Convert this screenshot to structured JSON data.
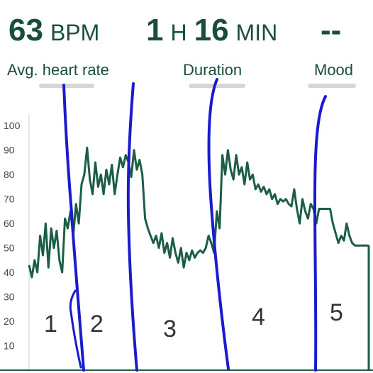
{
  "header": {
    "heart_rate": {
      "value": "63",
      "unit": "BPM",
      "label": "Avg. heart rate"
    },
    "duration": {
      "hours": "1",
      "hours_unit": "H",
      "minutes": "16",
      "minutes_unit": "MIN",
      "label": "Duration"
    },
    "mood": {
      "value": "--",
      "label": "Mood"
    }
  },
  "colors": {
    "line": "#1b5e45",
    "annotation": "#1a1acf",
    "text": "#1b4d3e"
  },
  "chart_data": {
    "type": "line",
    "title": "",
    "xlabel": "",
    "ylabel": "",
    "ylim": [
      0,
      105
    ],
    "y_ticks": [
      "10",
      "20",
      "30",
      "40",
      "50",
      "60",
      "70",
      "80",
      "90",
      "100"
    ],
    "series": [
      {
        "values": [
          43,
          38,
          45,
          40,
          55,
          47,
          60,
          42,
          58,
          50,
          57,
          45,
          40,
          62,
          58,
          65,
          55,
          68,
          60,
          76,
          80,
          91,
          78,
          72,
          85,
          75,
          80,
          72,
          82,
          76,
          84,
          72,
          80,
          87,
          83,
          88,
          85,
          79,
          90,
          82,
          86,
          80,
          62,
          58,
          55,
          52,
          55,
          50,
          56,
          48,
          52,
          46,
          54,
          48,
          44,
          50,
          42,
          48,
          45,
          49,
          46,
          48,
          49,
          48,
          50,
          55,
          52,
          48,
          65,
          58,
          88,
          80,
          90,
          82,
          78,
          88,
          80,
          83,
          76,
          85,
          78,
          80,
          74,
          76,
          73,
          75,
          72,
          74,
          70,
          72,
          68,
          70,
          69,
          70,
          68,
          67,
          74,
          66,
          60,
          70,
          65,
          62,
          68,
          66,
          60,
          66,
          66,
          66,
          66,
          66,
          60,
          56,
          52,
          55,
          53,
          60,
          55,
          52,
          51,
          51,
          51,
          51,
          51,
          51
        ]
      }
    ]
  },
  "annotations": {
    "segment_numbers": [
      "1",
      "2",
      "3",
      "4",
      "5"
    ]
  }
}
